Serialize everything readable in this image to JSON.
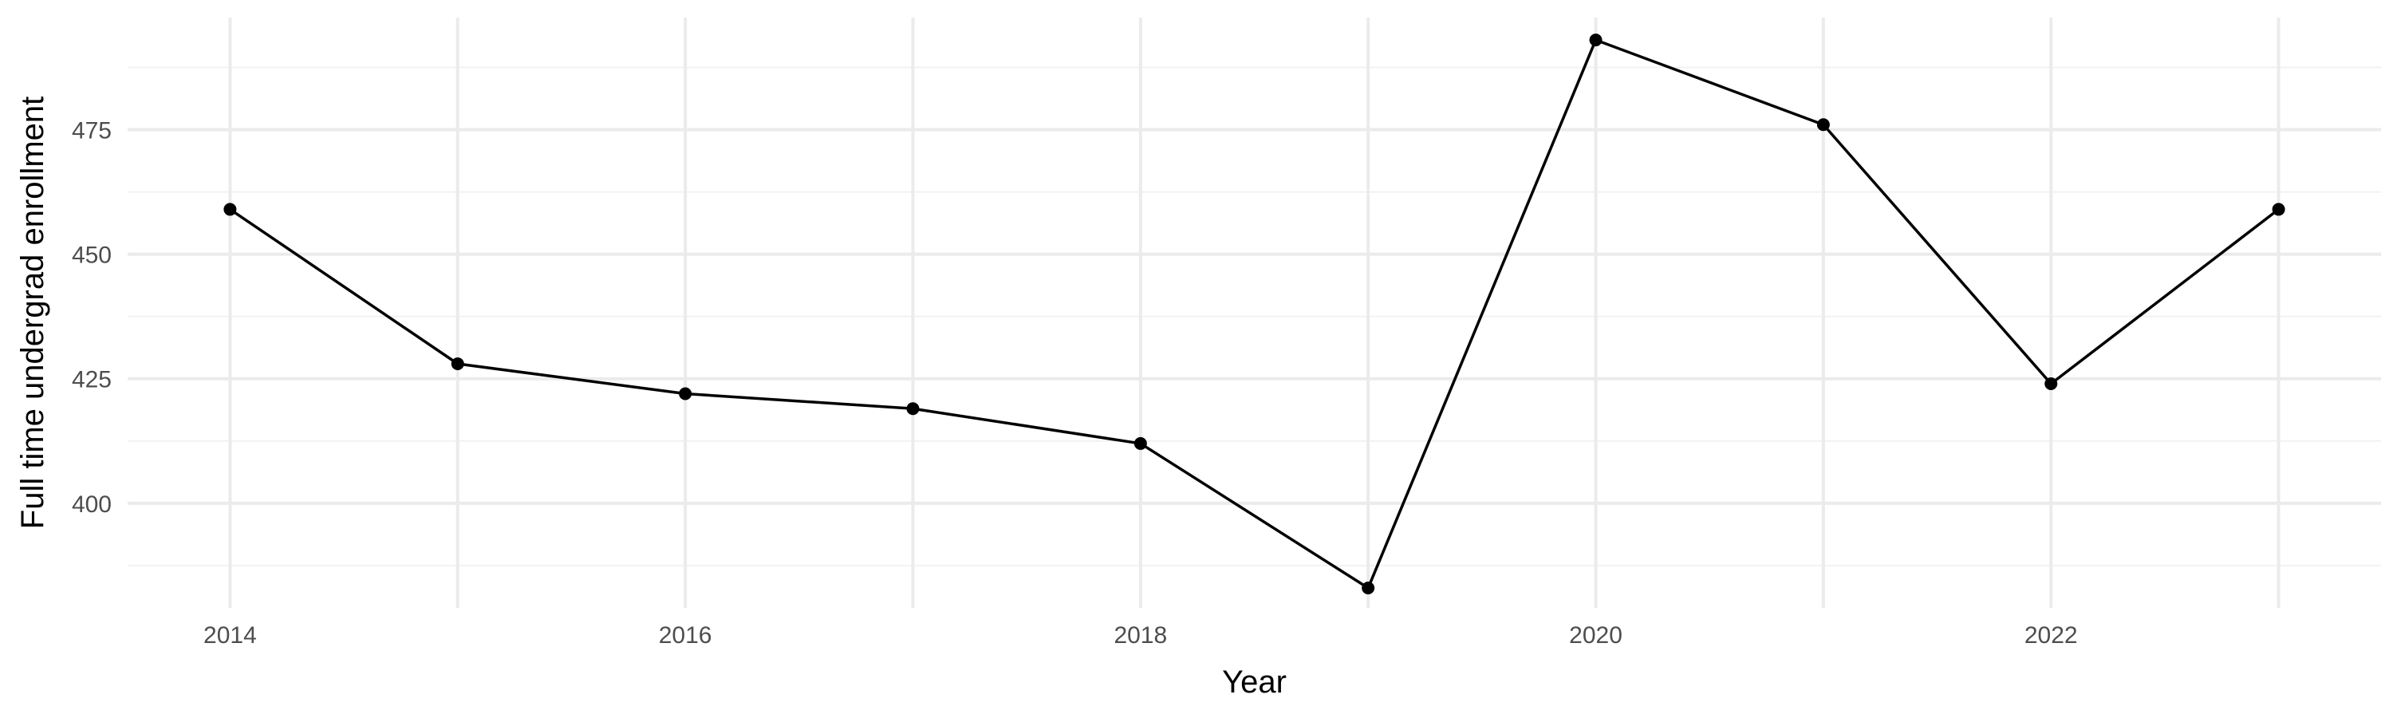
{
  "chart_data": {
    "type": "line",
    "title": "",
    "xlabel": "Year",
    "ylabel": "Full time undergrad enrollment",
    "x": [
      2014,
      2015,
      2016,
      2017,
      2018,
      2019,
      2020,
      2021,
      2022,
      2023
    ],
    "series": [
      {
        "values": [
          459,
          428,
          422,
          419,
          412,
          383,
          493,
          476,
          424,
          459
        ],
        "color": "#000000"
      }
    ],
    "xlim": [
      2013.55,
      2023.45
    ],
    "ylim": [
      379,
      497.5
    ],
    "x_ticks": [
      2014,
      2016,
      2018,
      2020,
      2022
    ],
    "y_ticks": [
      400,
      425,
      450,
      475
    ],
    "grid": true,
    "legend": "none",
    "theme": "minimal"
  }
}
